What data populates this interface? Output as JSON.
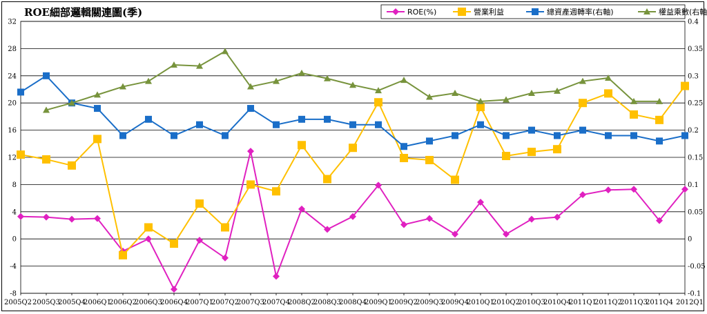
{
  "chart_data": {
    "type": "line",
    "title": "ROE細部邏輯關連圖(季)",
    "categories": [
      "2005Q2",
      "2005Q3",
      "2005Q4",
      "2006Q1",
      "2006Q2",
      "2006Q3",
      "2006Q4",
      "2007Q1",
      "2007Q2",
      "2007Q3",
      "2007Q4",
      "2008Q2",
      "2008Q3",
      "2008Q4",
      "2009Q1",
      "2009Q2",
      "2009Q3",
      "2009Q4",
      "2010Q1",
      "2010Q2",
      "2010Q3",
      "2010Q4",
      "2011Q1",
      "2011Q2",
      "2011Q3",
      "2011Q4",
      "2012Q1"
    ],
    "y_left": {
      "min": -8,
      "max": 32,
      "ticks": [
        "-8",
        "-4",
        "0",
        "4",
        "8",
        "12",
        "16",
        "20",
        "24",
        "28",
        "32"
      ]
    },
    "y_right": {
      "min": -0.1,
      "max": 0.4,
      "ticks": [
        "-0.1",
        "-0.05",
        "0",
        "0.05",
        "0.1",
        "0.15",
        "0.2",
        "0.25",
        "0.3",
        "0.35",
        "0.4"
      ]
    },
    "legend_position": "top-right",
    "grid": true,
    "series": [
      {
        "name": "ROE(%)",
        "axis": "left",
        "color": "#e020c0",
        "marker": "diamond",
        "values": [
          3.3,
          3.2,
          2.9,
          3.0,
          -1.8,
          0.0,
          -7.4,
          -0.2,
          -2.8,
          12.9,
          -5.5,
          4.4,
          1.4,
          3.3,
          7.9,
          2.1,
          3.0,
          0.7,
          5.4,
          0.7,
          2.9,
          3.2,
          6.5,
          7.2,
          7.3,
          2.7,
          7.3
        ]
      },
      {
        "name": "營業利益",
        "axis": "left",
        "color": "#ffc000",
        "marker": "square",
        "values": [
          12.4,
          11.7,
          10.8,
          14.7,
          -2.4,
          1.7,
          -0.7,
          5.2,
          1.7,
          8.0,
          7.0,
          13.8,
          8.8,
          13.4,
          20.1,
          11.9,
          11.6,
          8.7,
          19.4,
          12.2,
          12.8,
          13.2,
          20.0,
          21.4,
          18.3,
          17.5,
          22.5
        ]
      },
      {
        "name": "總資產週轉率(右軸)",
        "axis": "right",
        "color": "#1a6ec8",
        "marker": "square",
        "values": [
          0.27,
          0.3,
          0.25,
          0.24,
          0.19,
          0.22,
          0.19,
          0.21,
          0.19,
          0.24,
          0.21,
          0.22,
          0.22,
          0.21,
          0.21,
          0.17,
          0.18,
          0.19,
          0.21,
          0.19,
          0.2,
          0.19,
          0.2,
          0.19,
          0.19,
          0.18,
          0.19
        ]
      },
      {
        "name": "權益乘數(右軸)",
        "axis": "right",
        "color": "#77933c",
        "marker": "triangle",
        "values": [
          null,
          0.237,
          0.25,
          0.265,
          0.28,
          0.29,
          0.32,
          0.318,
          0.345,
          0.28,
          0.29,
          0.305,
          0.295,
          0.283,
          0.273,
          0.292,
          0.261,
          0.268,
          0.253,
          0.256,
          0.268,
          0.272,
          0.29,
          0.296,
          0.253,
          0.253,
          null
        ]
      }
    ]
  }
}
